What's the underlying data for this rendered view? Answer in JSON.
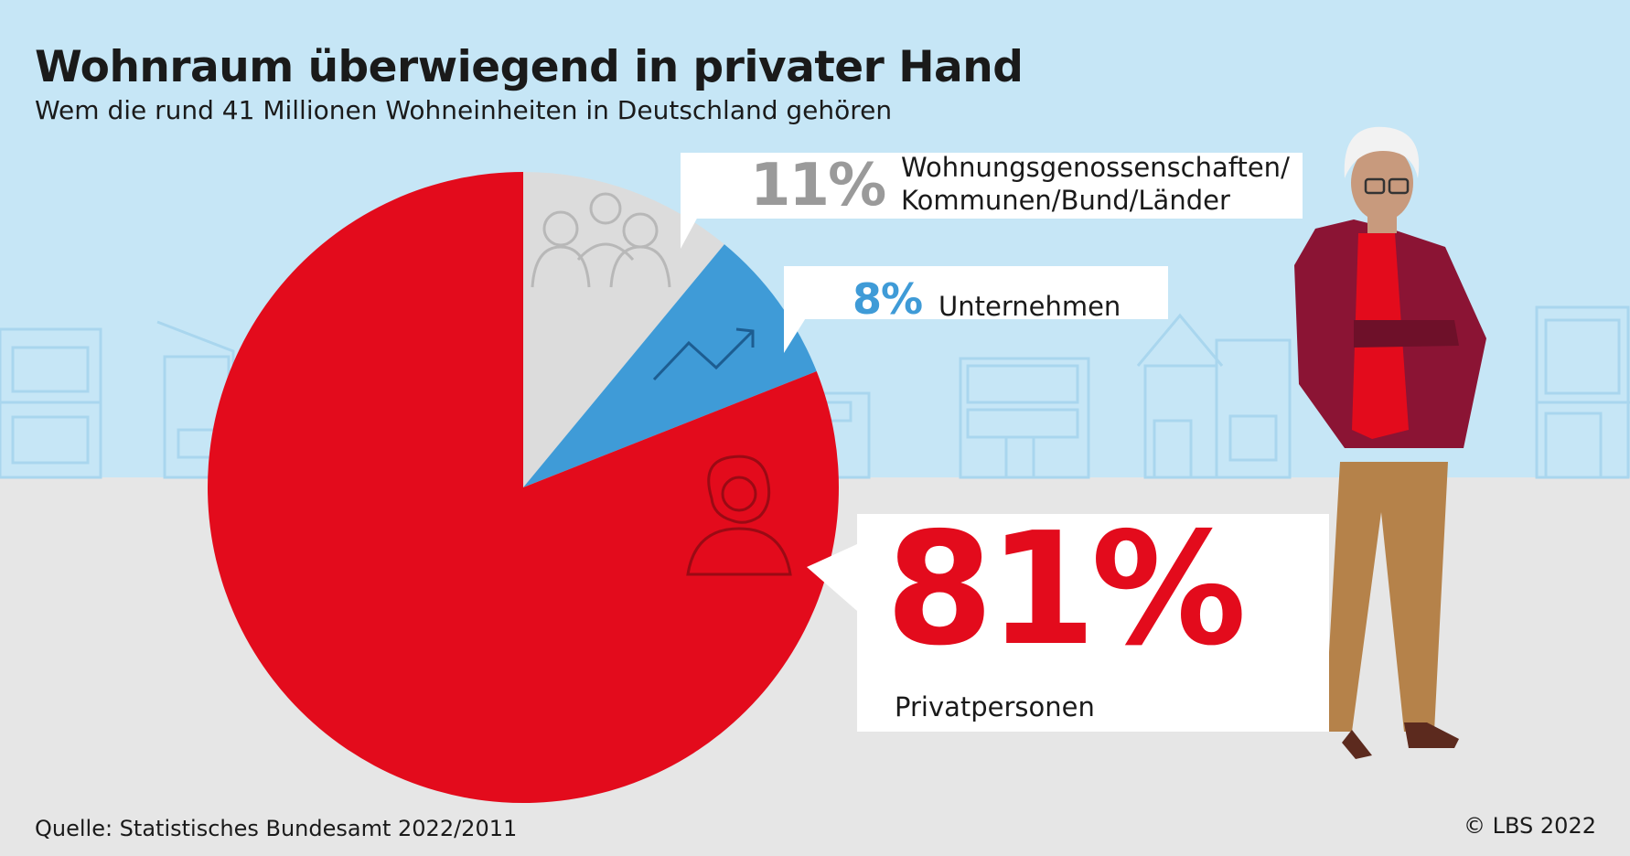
{
  "title": "Wohnraum überwiegend in privater Hand",
  "subtitle": "Wem die rund 41 Millionen Wohneinheiten in Deutschland gehören",
  "source": "Quelle: Statistisches Bundesamt 2022/2011",
  "copyright": "© LBS 2022",
  "colors": {
    "sky": "#c6e6f6",
    "ground": "#e6e6e6",
    "red": "#e30b1c",
    "blue": "#3f9bd7",
    "grey_slice": "#dcdcdc",
    "grey_text": "#9a9a9a",
    "outline": "#a9d6ee"
  },
  "icons": [
    "people-group-icon",
    "trend-arrow-icon",
    "woman-icon",
    "man-figure-illustration",
    "houses-skyline-illustration"
  ],
  "chart_data": {
    "type": "pie",
    "slices": [
      {
        "label_lines": [
          "Wohnungsgenossenschaften/",
          "Kommunen/Bund/Länder"
        ],
        "value": 11,
        "display": "11%",
        "color": "#dcdcdc"
      },
      {
        "label_lines": [
          "Unternehmen"
        ],
        "value": 8,
        "display": "8%",
        "color": "#3f9bd7"
      },
      {
        "label_lines": [
          "Privatpersonen"
        ],
        "value": 81,
        "display": "81%",
        "color": "#e30b1c"
      }
    ],
    "start_angle_deg": 0,
    "direction": "clockwise"
  }
}
